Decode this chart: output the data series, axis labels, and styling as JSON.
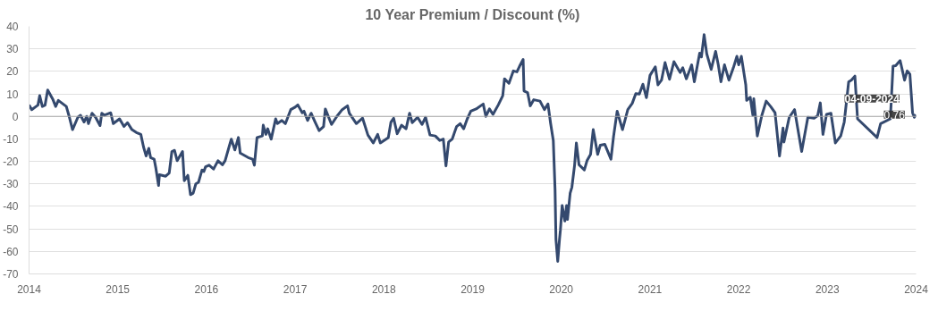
{
  "chart_data": {
    "type": "line",
    "title": "10 Year Premium / Discount (%)",
    "xlim": [
      2014,
      2024
    ],
    "xticks": [
      2014,
      2015,
      2016,
      2017,
      2018,
      2019,
      2020,
      2021,
      2022,
      2023,
      2024
    ],
    "ylim": [
      -70,
      40
    ],
    "yticks": [
      -70,
      -60,
      -50,
      -40,
      -30,
      -20,
      -10,
      0,
      10,
      20,
      30,
      40
    ],
    "grid": "y",
    "marker": "none",
    "line_style": "solid",
    "ref_lines": [
      {
        "axis": "y",
        "value": 0,
        "color": "#aaaaaa"
      }
    ],
    "annotations": [
      {
        "text": "04-09-2024",
        "x": 2024.0,
        "y": 0.76
      },
      {
        "text": "0.76",
        "x": 2024.0,
        "y": 0.76
      }
    ],
    "series": [
      {
        "color": "#34496e",
        "x": [
          2014.0,
          2014.03,
          2014.1,
          2014.12,
          2014.15,
          2014.18,
          2014.21,
          2014.27,
          2014.3,
          2014.33,
          2014.42,
          2014.45,
          2014.49,
          2014.55,
          2014.58,
          2014.62,
          2014.65,
          2014.67,
          2014.71,
          2014.75,
          2014.8,
          2014.82,
          2014.85,
          2014.92,
          2014.95,
          2015.02,
          2015.07,
          2015.11,
          2015.16,
          2015.21,
          2015.26,
          2015.29,
          2015.32,
          2015.35,
          2015.37,
          2015.41,
          2015.43,
          2015.46,
          2015.47,
          2015.54,
          2015.58,
          2015.61,
          2015.64,
          2015.67,
          2015.73,
          2015.75,
          2015.79,
          2015.82,
          2015.85,
          2015.88,
          2015.91,
          2015.95,
          2015.97,
          2015.99,
          2016.03,
          2016.08,
          2016.13,
          2016.18,
          2016.21,
          2016.25,
          2016.28,
          2016.32,
          2016.36,
          2016.38,
          2016.47,
          2016.52,
          2016.54,
          2016.57,
          2016.63,
          2016.64,
          2016.67,
          2016.69,
          2016.73,
          2016.78,
          2016.8,
          2016.85,
          2016.89,
          2016.95,
          2017.0,
          2017.03,
          2017.08,
          2017.1,
          2017.14,
          2017.18,
          2017.22,
          2017.27,
          2017.32,
          2017.34,
          2017.41,
          2017.47,
          2017.53,
          2017.59,
          2017.61,
          2017.69,
          2017.76,
          2017.82,
          2017.88,
          2017.93,
          2017.96,
          2018.05,
          2018.08,
          2018.11,
          2018.15,
          2018.2,
          2018.25,
          2018.29,
          2018.32,
          2018.38,
          2018.43,
          2018.47,
          2018.52,
          2018.58,
          2018.63,
          2018.67,
          2018.7,
          2018.73,
          2018.77,
          2018.82,
          2018.86,
          2018.9,
          2018.94,
          2018.98,
          2019.04,
          2019.12,
          2019.15,
          2019.19,
          2019.23,
          2019.29,
          2019.34,
          2019.36,
          2019.41,
          2019.46,
          2019.5,
          2019.53,
          2019.57,
          2019.58,
          2019.62,
          2019.65,
          2019.69,
          2019.76,
          2019.81,
          2019.85,
          2019.88,
          2019.91,
          2019.93,
          2019.94,
          2019.96,
          2019.98,
          2019.99,
          2020.01,
          2020.04,
          2020.06,
          2020.07,
          2020.1,
          2020.12,
          2020.15,
          2020.17,
          2020.2,
          2020.26,
          2020.29,
          2020.33,
          2020.36,
          2020.41,
          2020.44,
          2020.49,
          2020.56,
          2020.59,
          2020.63,
          2020.66,
          2020.69,
          2020.75,
          2020.8,
          2020.84,
          2020.88,
          2020.92,
          2020.96,
          2021.0,
          2021.06,
          2021.09,
          2021.13,
          2021.17,
          2021.22,
          2021.27,
          2021.34,
          2021.37,
          2021.41,
          2021.47,
          2021.5,
          2021.56,
          2021.58,
          2021.61,
          2021.64,
          2021.69,
          2021.74,
          2021.77,
          2021.8,
          2021.84,
          2021.89,
          2021.94,
          2021.98,
          2022.0,
          2022.03,
          2022.08,
          2022.09,
          2022.13,
          2022.16,
          2022.17,
          2022.21,
          2022.26,
          2022.31,
          2022.36,
          2022.41,
          2022.46,
          2022.5,
          2022.51,
          2022.57,
          2022.63,
          2022.71,
          2022.78,
          2022.85,
          2022.89,
          2022.92,
          2022.95,
          2022.99,
          2023.04,
          2023.09,
          2023.15,
          2023.19,
          2023.24,
          2023.27,
          2023.31,
          2023.34,
          2023.56,
          2023.6,
          2023.71,
          2023.74,
          2023.77,
          2023.82,
          2023.87,
          2023.9,
          2023.93,
          2023.96,
          2023.98,
          2024.0
        ],
        "values": [
          5.1,
          3,
          5,
          9.2,
          4.4,
          5,
          11.7,
          7.4,
          4.4,
          7.1,
          4.4,
          0.3,
          -5.9,
          -0.4,
          0.5,
          -2.5,
          0,
          -3.2,
          1.4,
          -0.4,
          -4.1,
          1.4,
          0.5,
          1.6,
          -3.2,
          -1.1,
          -4.5,
          -2.8,
          -5.9,
          -7.2,
          -8,
          -13.5,
          -17.6,
          -14.2,
          -18.3,
          -19,
          -23.1,
          -30.7,
          -25.9,
          -26.6,
          -25.2,
          -15.6,
          -15.1,
          -19.7,
          -15.6,
          -28.6,
          -26.2,
          -34.8,
          -34.1,
          -30,
          -29.3,
          -23.8,
          -24.5,
          -22.4,
          -21.7,
          -23.4,
          -19.7,
          -21.5,
          -19.7,
          -14.2,
          -10.1,
          -14.9,
          -9.4,
          -16.3,
          -18.3,
          -19,
          -21.7,
          -9.4,
          -8.7,
          -3.9,
          -8,
          -5.5,
          -10.1,
          -1.1,
          -3.2,
          -1.8,
          -3.2,
          3,
          4.1,
          5.1,
          1.6,
          2.3,
          -1.8,
          1.4,
          -2.1,
          -6.3,
          -4.5,
          3.3,
          -3.6,
          0,
          3,
          4.7,
          1.4,
          -3.2,
          -0.8,
          -8.3,
          -11.8,
          -8,
          -11.8,
          -9.4,
          -2.5,
          -0.8,
          -7.7,
          -3.9,
          -5.5,
          1.4,
          -2.8,
          -0.4,
          -3.6,
          -0.4,
          -8.3,
          -8.7,
          -10.7,
          -10.1,
          -22,
          -11.4,
          -10.1,
          -4.5,
          -3.2,
          -5.5,
          -1.1,
          2.3,
          3.3,
          5.5,
          0,
          3.3,
          0.9,
          5.1,
          9.2,
          16.7,
          14.7,
          20.2,
          19.8,
          22.3,
          25.3,
          11.3,
          10.6,
          4.7,
          7.4,
          6.8,
          3,
          5.5,
          -3.2,
          -10.7,
          -32.8,
          -54.7,
          -64.4,
          -54.7,
          -50.6,
          -39.6,
          -46.5,
          -39.6,
          -45.8,
          -34.1,
          -31.4,
          -21.7,
          -11.8,
          -21.5,
          -23.8,
          -19.7,
          -16.9,
          -5.9,
          -16.9,
          -12.8,
          -12.4,
          -19,
          -8.7,
          2.3,
          -1.8,
          -5.9,
          3,
          5.8,
          10.1,
          9.9,
          14.3,
          8.3,
          18.2,
          22,
          14,
          16.1,
          23.9,
          16.5,
          24.3,
          19.5,
          21.6,
          16.7,
          22.9,
          15.4,
          28.1,
          26.4,
          36.3,
          27.8,
          20.9,
          28.9,
          22.9,
          15.4,
          22.9,
          16.1,
          21.6,
          26.7,
          22.9,
          26.7,
          14,
          7.1,
          8.5,
          0.5,
          7.8,
          -8.7,
          0.3,
          6.8,
          4.4,
          1.6,
          -17.6,
          -5.2,
          -11.4,
          -0.4,
          3,
          -15.6,
          -0.4,
          -0.8,
          0.3,
          6,
          -8,
          0.9,
          1.4,
          -11.8,
          -8.7,
          -2.5,
          15.4,
          16.1,
          17.9,
          -1.1,
          -9.4,
          -3.2,
          -1.1,
          22.3,
          22.5,
          24.8,
          16.1,
          20.2,
          18.8,
          1.6,
          -0.4,
          0.76
        ]
      }
    ]
  }
}
